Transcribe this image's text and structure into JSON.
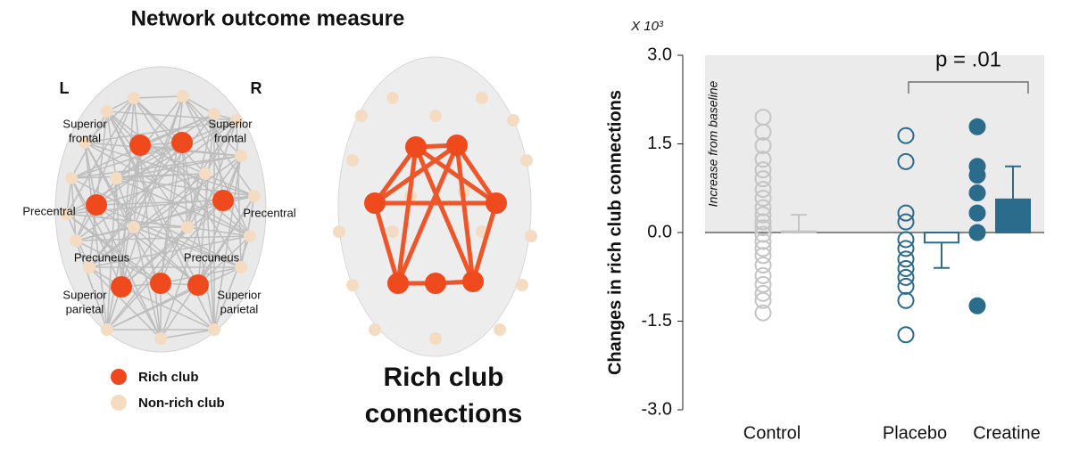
{
  "network_panel": {
    "title": "Network outcome measure",
    "left_label": "L",
    "right_label": "R",
    "regions": [
      [
        "Superior",
        "frontal"
      ],
      [
        "Superior",
        "frontal"
      ],
      [
        "Precentral"
      ],
      [
        "Precentral"
      ],
      [
        "Precuneus"
      ],
      [
        "Precuneus"
      ],
      [
        "Superior",
        "parietal"
      ],
      [
        "Superior",
        "parietal"
      ]
    ],
    "legend": [
      "Rich club",
      "Non-rich club"
    ],
    "subtitle": [
      "Rich club",
      "connections"
    ]
  },
  "chart_data": {
    "type": "bar",
    "ylabel": "Changes in rich club connections",
    "yunit": "X 10³",
    "annotation": "Increase from baseline",
    "pvalue": "p = .01",
    "categories": [
      "Control",
      "Placebo",
      "Creatine"
    ],
    "groups": [
      {
        "color": "#c4c4c4",
        "filled": false,
        "values": [
          1.95,
          1.7,
          1.47,
          1.24,
          1.06,
          0.91,
          0.73,
          0.58,
          0.42,
          0.3,
          0.18,
          0.08,
          -0.03,
          -0.15,
          -0.27,
          -0.39,
          -0.55,
          -0.73,
          -0.88,
          -1.03,
          -1.15,
          -1.36
        ],
        "mean": 0.02,
        "error": 0.28
      },
      {
        "color": "#2b6b8c",
        "filled": false,
        "values": [
          1.64,
          1.2,
          0.33,
          0.18,
          -0.12,
          -0.27,
          -0.45,
          -0.61,
          -0.76,
          -0.91,
          -1.15,
          -1.73
        ],
        "mean": -0.17,
        "error": 0.43
      },
      {
        "color": "#2b6b8c",
        "filled": true,
        "values": [
          1.79,
          1.12,
          0.97,
          0.67,
          0.33,
          0.0,
          -1.24
        ],
        "mean": 0.56,
        "error": 0.56
      }
    ],
    "ylim": [
      -3,
      3
    ],
    "yticks": [
      {
        "value": 3,
        "label": "3.0"
      },
      1.5,
      {
        "value": 0,
        "label": "0.0"
      },
      -1.5,
      {
        "value": -3,
        "label": "-3.0"
      }
    ]
  }
}
